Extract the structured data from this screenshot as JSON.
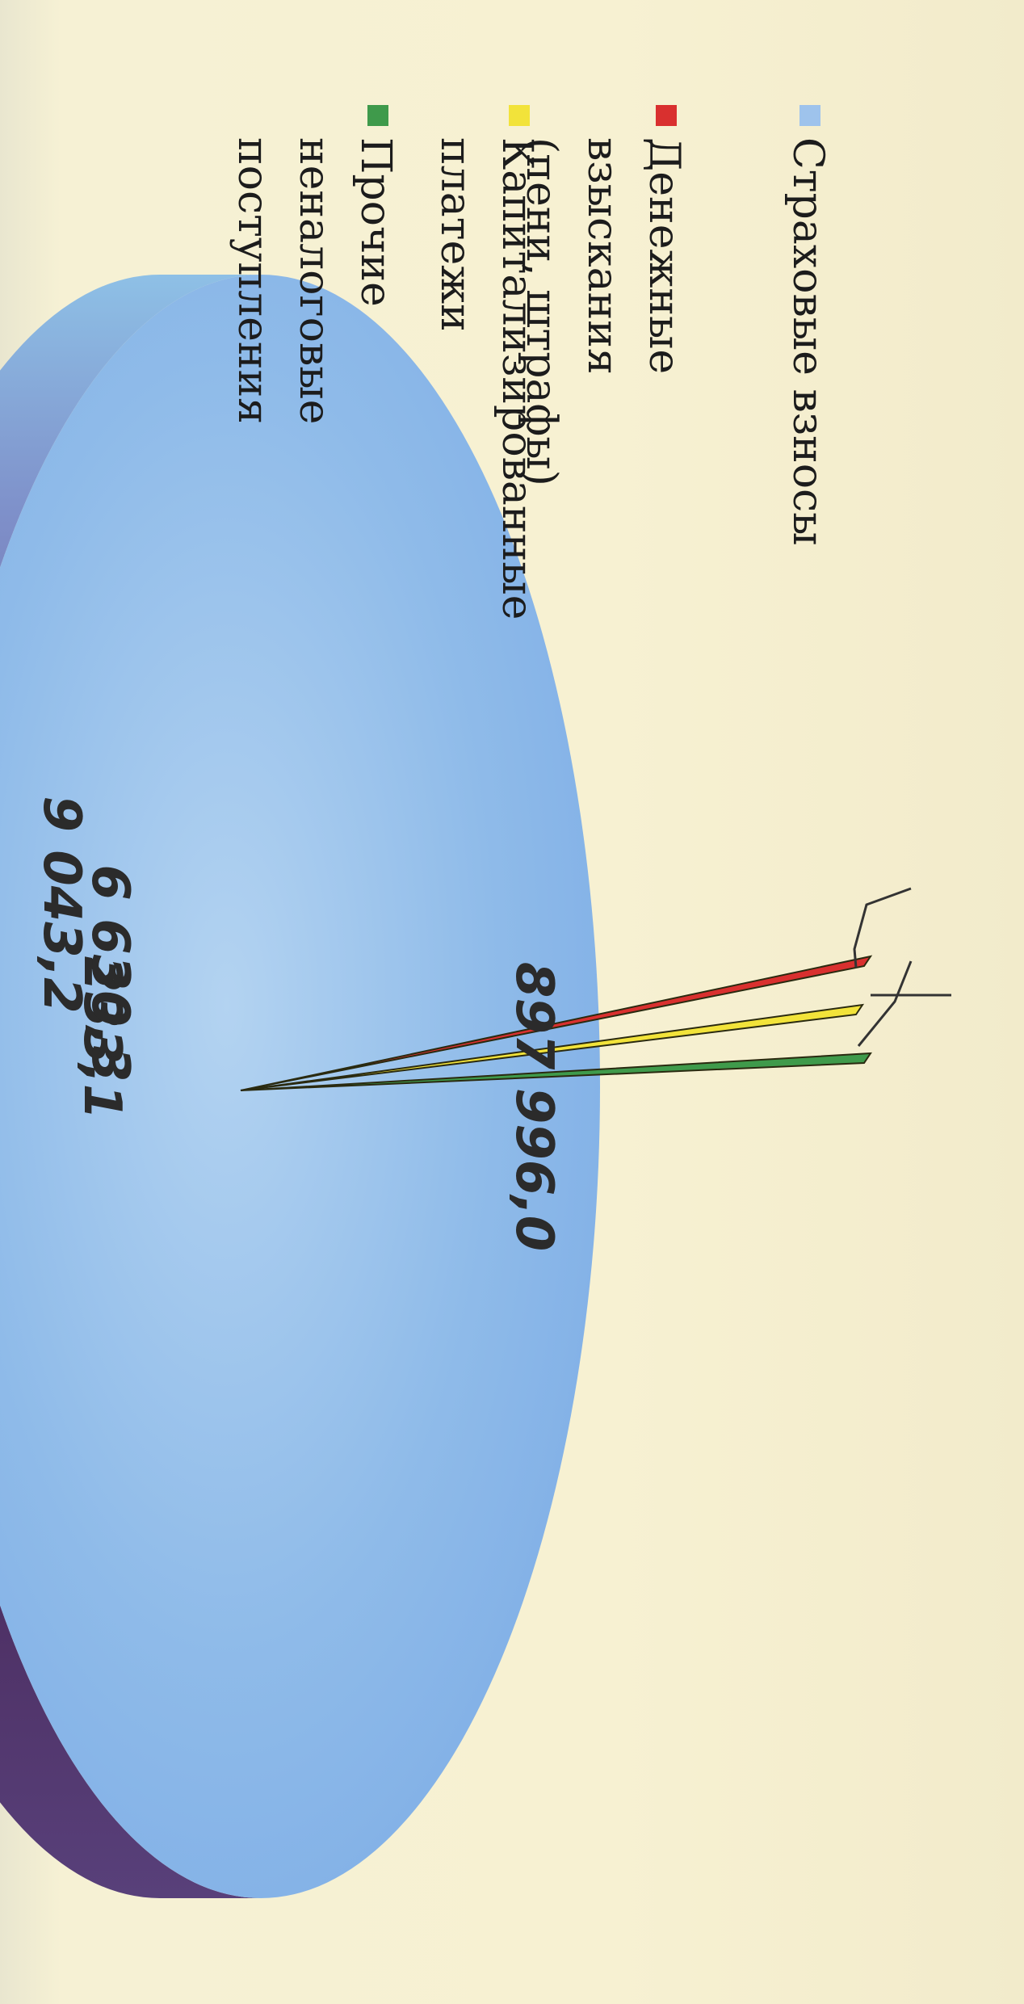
{
  "chart_data": {
    "type": "pie",
    "style": "3d",
    "legend_position": "right",
    "series": [
      {
        "name": "Страховые взносы",
        "value_label": "897 996,0",
        "value": 897996.0,
        "color": "#9ec3ec"
      },
      {
        "name": "Денежные взыскания (пени, штрафы)",
        "value_label": "233,1",
        "value": 233.1,
        "color": "#d9302f"
      },
      {
        "name": "Капитализированные платежи",
        "value_label": "9 043,2",
        "value": 9043.2,
        "color": "#f2e33a"
      },
      {
        "name": "Прочие неналоговые поступления",
        "value_label": "6 630,3",
        "value": 6630.3,
        "color": "#3f9a4b"
      }
    ]
  }
}
